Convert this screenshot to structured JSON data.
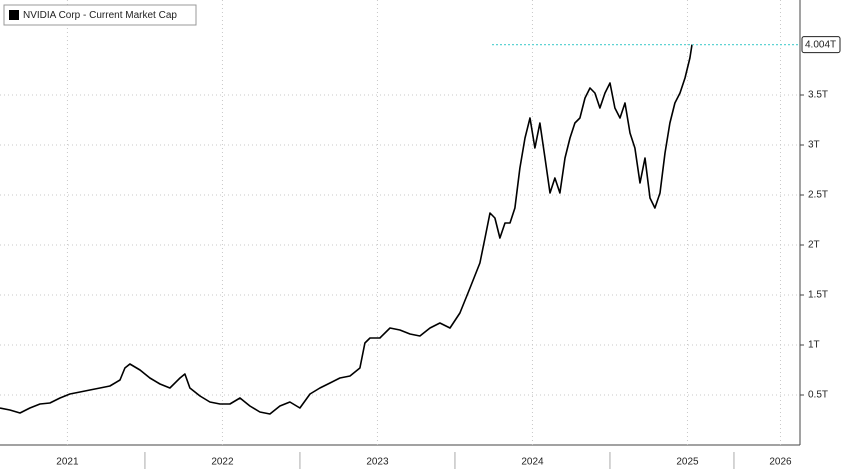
{
  "chart_data": {
    "type": "line",
    "x": [
      2021.065,
      2021.129,
      2021.194,
      2021.258,
      2021.323,
      2021.387,
      2021.452,
      2021.516,
      2021.581,
      2021.645,
      2021.71,
      2021.774,
      2021.839,
      2021.871,
      2021.903,
      2021.968,
      2022.032,
      2022.097,
      2022.161,
      2022.226,
      2022.258,
      2022.29,
      2022.355,
      2022.419,
      2022.484,
      2022.548,
      2022.613,
      2022.677,
      2022.742,
      2022.806,
      2022.871,
      2022.935,
      2023.0,
      2023.065,
      2023.129,
      2023.194,
      2023.258,
      2023.323,
      2023.387,
      2023.419,
      2023.452,
      2023.516,
      2023.581,
      2023.645,
      2023.71,
      2023.774,
      2023.839,
      2023.903,
      2023.968,
      2024.032,
      2024.097,
      2024.161,
      2024.194,
      2024.226,
      2024.258,
      2024.29,
      2024.323,
      2024.355,
      2024.387,
      2024.419,
      2024.452,
      2024.484,
      2024.516,
      2024.548,
      2024.581,
      2024.613,
      2024.645,
      2024.677,
      2024.71,
      2024.742,
      2024.774,
      2024.806,
      2024.839,
      2024.871,
      2024.903,
      2024.935,
      2024.968,
      2025.0,
      2025.032,
      2025.065,
      2025.097,
      2025.129,
      2025.161,
      2025.194,
      2025.226,
      2025.258,
      2025.29,
      2025.323,
      2025.355,
      2025.387,
      2025.419,
      2025.452,
      2025.484,
      2025.516,
      2025.529
    ],
    "series": [
      {
        "name": "NVIDIA Corp - Current Market Cap",
        "color": "#000000",
        "values": [
          0.37,
          0.35,
          0.32,
          0.37,
          0.41,
          0.42,
          0.47,
          0.51,
          0.53,
          0.55,
          0.57,
          0.59,
          0.65,
          0.77,
          0.81,
          0.75,
          0.67,
          0.61,
          0.57,
          0.67,
          0.71,
          0.57,
          0.49,
          0.43,
          0.41,
          0.41,
          0.47,
          0.39,
          0.33,
          0.31,
          0.39,
          0.43,
          0.37,
          0.51,
          0.57,
          0.62,
          0.67,
          0.69,
          0.77,
          1.02,
          1.07,
          1.07,
          1.17,
          1.15,
          1.11,
          1.09,
          1.17,
          1.22,
          1.17,
          1.32,
          1.57,
          1.82,
          2.07,
          2.32,
          2.27,
          2.07,
          2.22,
          2.22,
          2.37,
          2.77,
          3.07,
          3.27,
          2.97,
          3.22,
          2.87,
          2.52,
          2.67,
          2.52,
          2.87,
          3.07,
          3.22,
          3.27,
          3.47,
          3.57,
          3.52,
          3.37,
          3.52,
          3.62,
          3.37,
          3.27,
          3.42,
          3.12,
          2.97,
          2.62,
          2.87,
          2.47,
          2.37,
          2.52,
          2.92,
          3.22,
          3.42,
          3.52,
          3.67,
          3.87,
          4.004
        ]
      }
    ],
    "last_value": {
      "value": 4.004,
      "label": "4.004T",
      "color": "#5fd3d3"
    },
    "xlim": [
      2021.065,
      2026.226
    ],
    "xticks": [
      {
        "value": 2021.5,
        "label": "2021"
      },
      {
        "value": 2022.5,
        "label": "2022"
      },
      {
        "value": 2023.5,
        "label": "2023"
      },
      {
        "value": 2024.5,
        "label": "2024"
      },
      {
        "value": 2025.5,
        "label": "2025"
      },
      {
        "value": 2026.1,
        "label": "2026"
      }
    ],
    "ylim": [
      0,
      4.45
    ],
    "yticks": [
      {
        "value": 0.5,
        "label": "0.5T"
      },
      {
        "value": 1,
        "label": "1T"
      },
      {
        "value": 1.5,
        "label": "1.5T"
      },
      {
        "value": 2,
        "label": "2T"
      },
      {
        "value": 2.5,
        "label": "2.5T"
      },
      {
        "value": 3,
        "label": "3T"
      },
      {
        "value": 3.5,
        "label": "3.5T"
      }
    ],
    "grid": true
  }
}
